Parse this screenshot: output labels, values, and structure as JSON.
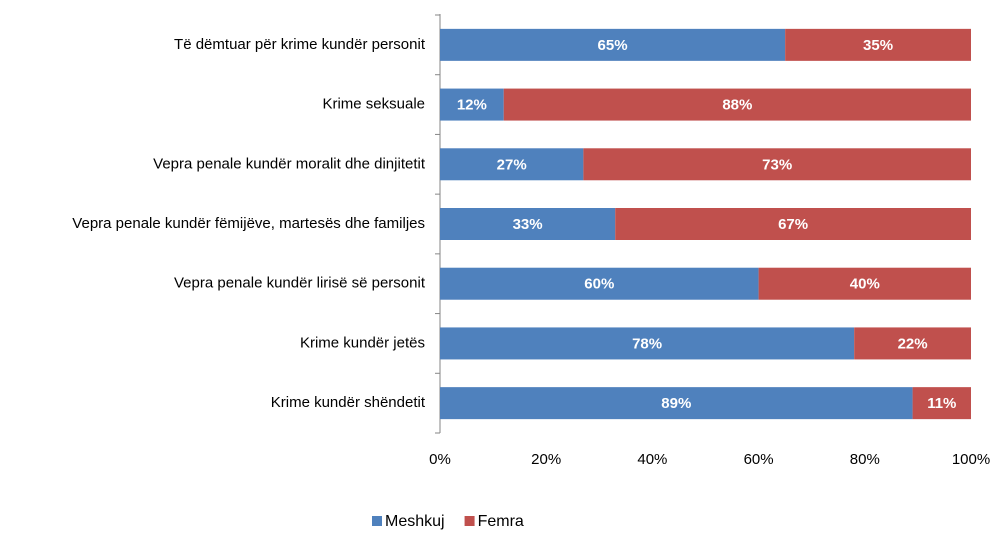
{
  "chart_data": {
    "type": "stacked_bar_horizontal",
    "categories": [
      "Të dëmtuar për krime kundër personit",
      "Krime seksuale",
      "Vepra penale kundër moralit dhe dinjitetit",
      "Vepra penale kundër fëmijëve, martesës dhe familjes",
      "Vepra penale kundër lirisë së personit",
      "Krime kundër jetës",
      "Krime kundër shëndetit"
    ],
    "series": [
      {
        "name": "Meshkuj",
        "color": "#4f81bd",
        "values": [
          65,
          12,
          27,
          33,
          60,
          78,
          89
        ],
        "value_labels": [
          "65%",
          "12%",
          "27%",
          "33%",
          "60%",
          "78%",
          "89%"
        ]
      },
      {
        "name": "Femra",
        "color": "#c0504d",
        "values": [
          35,
          88,
          73,
          67,
          40,
          22,
          11
        ],
        "value_labels": [
          "35%",
          "88%",
          "73%",
          "67%",
          "40%",
          "22%",
          "11%"
        ]
      }
    ],
    "xlim": [
      0,
      100
    ],
    "xticks": [
      {
        "value": 0,
        "label": "0%"
      },
      {
        "value": 20,
        "label": "20%"
      },
      {
        "value": 40,
        "label": "40%"
      },
      {
        "value": 60,
        "label": "60%"
      },
      {
        "value": 80,
        "label": "80%"
      },
      {
        "value": 100,
        "label": "100%"
      }
    ],
    "legend": "bottom"
  }
}
